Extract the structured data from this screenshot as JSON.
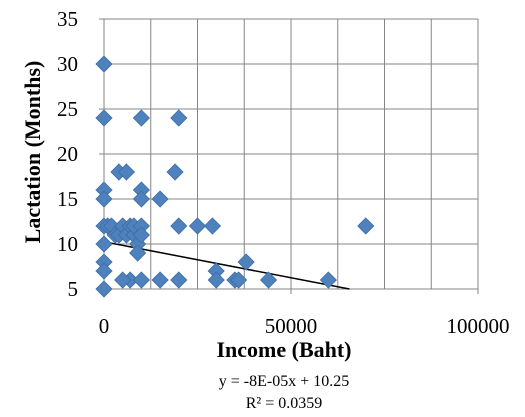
{
  "chart_data": {
    "type": "scatter",
    "title": "",
    "xlabel": "Income (Baht)",
    "ylabel": "Lactation (Months)",
    "xlim": [
      0,
      100000
    ],
    "ylim": [
      5,
      35
    ],
    "x_ticks": [
      "0",
      "50000",
      "100000"
    ],
    "y_ticks": [
      "5",
      "10",
      "15",
      "20",
      "25",
      "30",
      "35"
    ],
    "x_tick_values": [
      0,
      50000,
      100000
    ],
    "y_tick_values": [
      5,
      10,
      15,
      20,
      25,
      30,
      35
    ],
    "grid": true,
    "legend": "none",
    "marker": "diamond",
    "marker_color": "#4f81bd",
    "series": [
      {
        "points": [
          [
            0,
            30
          ],
          [
            0,
            24
          ],
          [
            0,
            16
          ],
          [
            0,
            15
          ],
          [
            0,
            12
          ],
          [
            0,
            10
          ],
          [
            0,
            8
          ],
          [
            0,
            7
          ],
          [
            0,
            5
          ],
          [
            1000,
            12
          ],
          [
            2000,
            12
          ],
          [
            3000,
            11
          ],
          [
            4000,
            18
          ],
          [
            4000,
            11
          ],
          [
            5000,
            12
          ],
          [
            6000,
            18
          ],
          [
            6000,
            11
          ],
          [
            7000,
            12
          ],
          [
            7000,
            6
          ],
          [
            8000,
            11
          ],
          [
            8000,
            12
          ],
          [
            9000,
            10
          ],
          [
            9000,
            9
          ],
          [
            10000,
            24
          ],
          [
            10000,
            16
          ],
          [
            10000,
            15
          ],
          [
            10000,
            12
          ],
          [
            10000,
            11
          ],
          [
            5000,
            6
          ],
          [
            10000,
            6
          ],
          [
            15000,
            15
          ],
          [
            15000,
            6
          ],
          [
            19000,
            18
          ],
          [
            20000,
            24
          ],
          [
            20000,
            12
          ],
          [
            20000,
            6
          ],
          [
            25000,
            12
          ],
          [
            29000,
            12
          ],
          [
            30000,
            7
          ],
          [
            30000,
            6
          ],
          [
            35000,
            6
          ],
          [
            36000,
            6
          ],
          [
            38000,
            8
          ],
          [
            44000,
            6
          ],
          [
            60000,
            6
          ],
          [
            70000,
            12
          ]
        ]
      }
    ],
    "trendline": {
      "type": "linear",
      "slope": -8e-05,
      "intercept": 10.25,
      "equation": "y = -8E-05x + 10.25",
      "r2": "R² = 0.0359"
    }
  }
}
